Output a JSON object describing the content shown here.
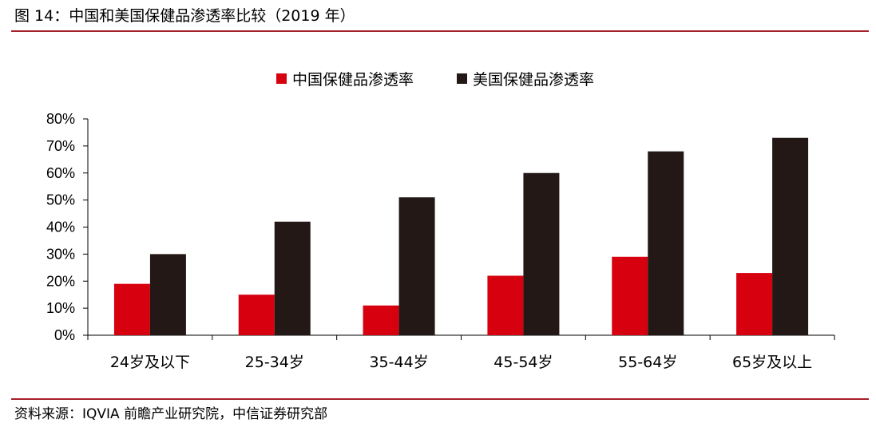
{
  "figure": {
    "title": "图 14：中国和美国保健品渗透率比较（2019 年）",
    "source": "资料来源：IQVIA 前瞻产业研究院，中信证券研究部"
  },
  "colors": {
    "china": "#d7000f",
    "usa": "#231815",
    "rule": "#a6202c"
  },
  "chart_data": {
    "type": "bar",
    "categories": [
      "24岁及以下",
      "25-34岁",
      "35-44岁",
      "45-54岁",
      "55-64岁",
      "65岁及以上"
    ],
    "series": [
      {
        "name": "中国保健品渗透率",
        "values": [
          19,
          15,
          11,
          22,
          29,
          23
        ]
      },
      {
        "name": "美国保健品渗透率",
        "values": [
          30,
          42,
          51,
          60,
          68,
          73
        ]
      }
    ],
    "ylim": [
      0,
      80
    ],
    "yticks": [
      0,
      10,
      20,
      30,
      40,
      50,
      60,
      70,
      80
    ],
    "ytick_labels": [
      "0%",
      "10%",
      "20%",
      "30%",
      "40%",
      "50%",
      "60%",
      "70%",
      "80%"
    ],
    "grid": false,
    "legend_position": "top-center"
  }
}
